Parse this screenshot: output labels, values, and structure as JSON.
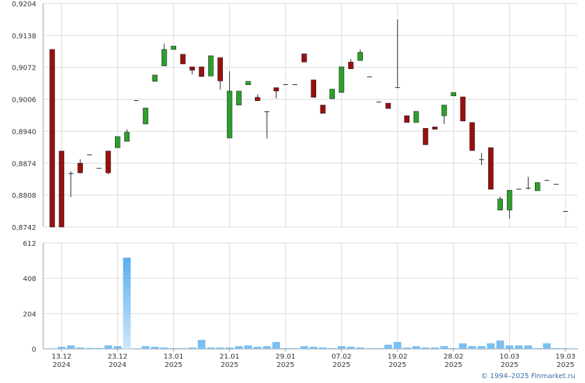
{
  "chart_data": {
    "type": "candlestick",
    "categories": [
      null,
      "13.12\n2024",
      null,
      null,
      null,
      null,
      null,
      "23.12\n2024",
      null,
      null,
      null,
      null,
      null,
      "13.01\n2025",
      null,
      null,
      null,
      null,
      null,
      "21.01\n2025",
      null,
      null,
      null,
      null,
      null,
      "29.01\n2025",
      null,
      null,
      null,
      null,
      null,
      "07.02\n2025",
      null,
      null,
      null,
      null,
      null,
      "19.02\n2025",
      null,
      null,
      null,
      null,
      null,
      "28.02\n2025",
      null,
      null,
      null,
      null,
      null,
      "10.03\n2025",
      null,
      null,
      null,
      null,
      null,
      "19.03\n2025"
    ],
    "open": [
      0.9109,
      0.8899,
      0.8853,
      0.8874,
      0.8892,
      0.8864,
      0.8899,
      0.8906,
      0.8919,
      0.9004,
      0.8955,
      0.9043,
      0.9075,
      0.9109,
      0.9099,
      0.9073,
      0.9073,
      0.9054,
      0.9092,
      0.8926,
      0.8994,
      0.9036,
      0.901,
      0.8981,
      0.903,
      0.9037,
      0.9037,
      0.91,
      0.9046,
      0.8994,
      0.9007,
      0.902,
      0.9083,
      0.9086,
      0.9053,
      0.9001,
      0.8998,
      0.9031,
      0.8972,
      0.8958,
      0.8946,
      0.8949,
      0.8972,
      0.9013,
      0.9011,
      0.8958,
      0.8882,
      0.8906,
      0.8777,
      0.8777,
      0.8821,
      0.8823,
      0.8817,
      0.8839,
      0.8831,
      0.8775
    ],
    "high": [
      0.9109,
      0.8899,
      0.8857,
      0.8882,
      0.8892,
      0.8864,
      0.8899,
      0.8929,
      0.8944,
      0.9004,
      0.8988,
      0.9056,
      0.9121,
      0.9116,
      0.9099,
      0.9073,
      0.9073,
      0.9096,
      0.9092,
      0.9064,
      0.9023,
      0.9043,
      0.9016,
      0.8981,
      0.903,
      0.9037,
      0.9037,
      0.91,
      0.9046,
      0.8994,
      0.9027,
      0.9073,
      0.9089,
      0.9109,
      0.9053,
      0.9001,
      0.8998,
      0.9171,
      0.8972,
      0.8981,
      0.8946,
      0.8949,
      0.8994,
      0.902,
      0.9011,
      0.8958,
      0.8895,
      0.8906,
      0.8805,
      0.8818,
      0.8821,
      0.8846,
      0.8834,
      0.8839,
      0.8831,
      0.8775
    ],
    "low": [
      0.8742,
      0.8742,
      0.8804,
      0.8853,
      0.8892,
      0.8864,
      0.8851,
      0.8906,
      0.8919,
      0.9004,
      0.8955,
      0.9043,
      0.9075,
      0.9109,
      0.9079,
      0.9057,
      0.9053,
      0.9054,
      0.9026,
      0.8926,
      0.8994,
      0.9036,
      0.9003,
      0.8925,
      0.9008,
      0.9037,
      0.9037,
      0.9083,
      0.901,
      0.8977,
      0.9007,
      0.902,
      0.9069,
      0.9086,
      0.9053,
      0.9001,
      0.8987,
      0.9031,
      0.8958,
      0.8958,
      0.8912,
      0.8944,
      0.8955,
      0.9013,
      0.8961,
      0.89,
      0.887,
      0.882,
      0.8777,
      0.8759,
      0.8821,
      0.882,
      0.8817,
      0.8839,
      0.8831,
      0.8775
    ],
    "close": [
      0.8742,
      0.8742,
      0.8853,
      0.8854,
      0.8892,
      0.8864,
      0.8854,
      0.8929,
      0.8938,
      0.9004,
      0.8988,
      0.9056,
      0.9109,
      0.9116,
      0.9079,
      0.9066,
      0.9053,
      0.9096,
      0.9044,
      0.9023,
      0.9023,
      0.9043,
      0.9003,
      0.8981,
      0.9023,
      0.9037,
      0.9037,
      0.9083,
      0.901,
      0.8977,
      0.9027,
      0.9073,
      0.9069,
      0.9103,
      0.9053,
      0.9001,
      0.8987,
      0.9031,
      0.8958,
      0.8981,
      0.8912,
      0.8944,
      0.8994,
      0.902,
      0.8961,
      0.89,
      0.8882,
      0.882,
      0.88,
      0.8818,
      0.8821,
      0.8823,
      0.8834,
      0.8839,
      0.8831,
      0.8775
    ],
    "up_color": "#2ca02c",
    "down_color": "#9b0f0f",
    "ylim": [
      0.8742,
      0.9204
    ],
    "yticks": [
      {
        "value": 0.8742,
        "label": "0,8742"
      },
      {
        "value": 0.8808,
        "label": "0,8808"
      },
      {
        "value": 0.8874,
        "label": "0,8874"
      },
      {
        "value": 0.894,
        "label": "0,8940"
      },
      {
        "value": 0.9006,
        "label": "0,9006"
      },
      {
        "value": 0.9072,
        "label": "0,9072"
      },
      {
        "value": 0.9138,
        "label": "0,9138"
      },
      {
        "value": 0.9204,
        "label": "0,9204"
      }
    ],
    "grid": true,
    "volume": {
      "type": "bar",
      "values": [
        3,
        12,
        20,
        8,
        5,
        5,
        20,
        16,
        527,
        3,
        16,
        12,
        8,
        4,
        4,
        8,
        52,
        8,
        8,
        8,
        16,
        20,
        12,
        16,
        40,
        4,
        4,
        16,
        12,
        8,
        4,
        16,
        12,
        8,
        4,
        4,
        24,
        40,
        8,
        16,
        8,
        8,
        16,
        4,
        32,
        16,
        16,
        32,
        48,
        20,
        20,
        20,
        4,
        32,
        4,
        4
      ],
      "color": "#7cc0f2",
      "ylim": [
        0,
        612
      ],
      "yticks": [
        0,
        204,
        408,
        612
      ]
    },
    "copyright": "© 1994–2025 Finmarket.ru"
  }
}
